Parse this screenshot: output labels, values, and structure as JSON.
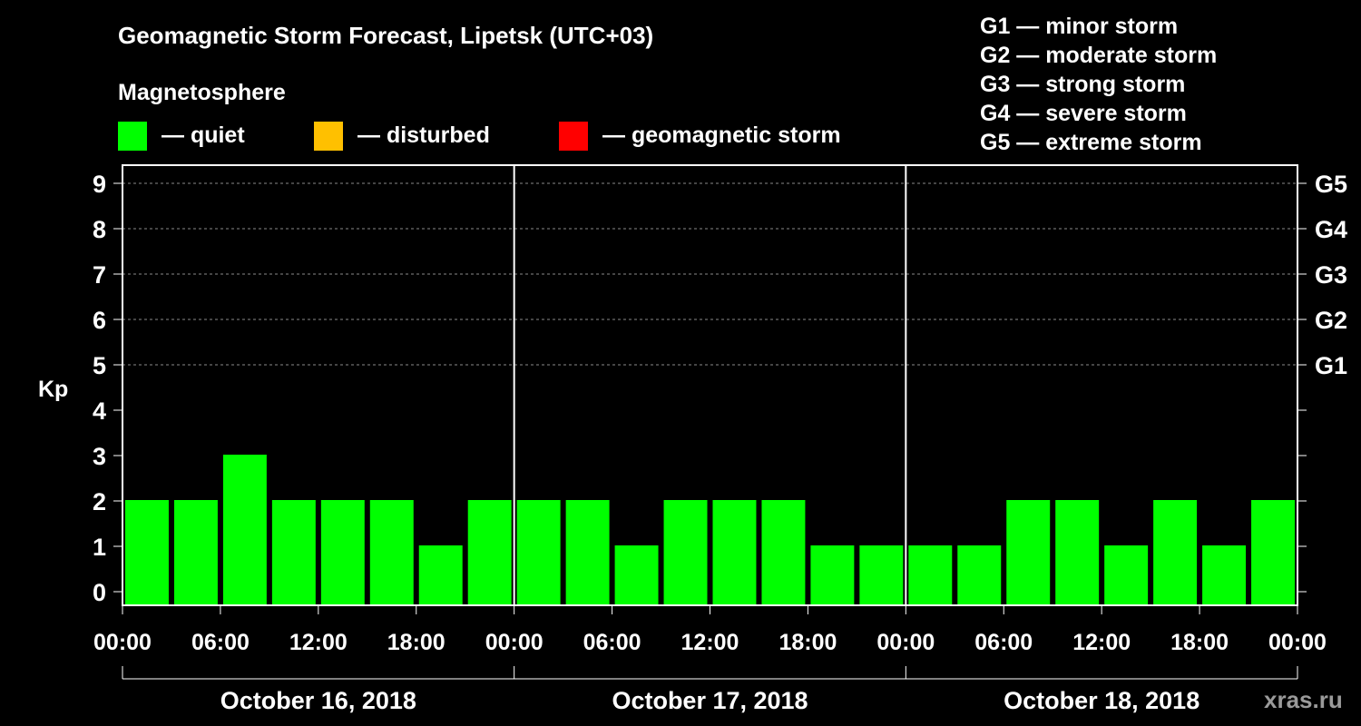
{
  "title": "Geomagnetic Storm Forecast, Lipetsk (UTC+03)",
  "legend": {
    "heading": "Magnetosphere",
    "items": [
      {
        "label": "— quiet",
        "color": "#00ff00"
      },
      {
        "label": "— disturbed",
        "color": "#ffc000"
      },
      {
        "label": "— geomagnetic storm",
        "color": "#ff0000"
      }
    ]
  },
  "storm_scale": [
    "G1 — minor storm",
    "G2 — moderate storm",
    "G3 — strong storm",
    "G4 — severe storm",
    "G5 — extreme storm"
  ],
  "watermark": "xras.ru",
  "chart_data": {
    "type": "bar",
    "title": "Geomagnetic Storm Forecast, Lipetsk (UTC+03)",
    "ylabel": "Kp",
    "xlabel": "",
    "ylim": [
      0,
      9
    ],
    "y_ticks": [
      "0",
      "1",
      "2",
      "3",
      "4",
      "5",
      "6",
      "7",
      "8",
      "9"
    ],
    "g_levels": [
      {
        "kp": 5,
        "label": "G1"
      },
      {
        "kp": 6,
        "label": "G2"
      },
      {
        "kp": 7,
        "label": "G3"
      },
      {
        "kp": 8,
        "label": "G4"
      },
      {
        "kp": 9,
        "label": "G5"
      }
    ],
    "x_tick_labels": [
      "00:00",
      "06:00",
      "12:00",
      "18:00",
      "00:00",
      "06:00",
      "12:00",
      "18:00",
      "00:00",
      "06:00",
      "12:00",
      "18:00",
      "00:00"
    ],
    "days": [
      "October 16, 2018",
      "October 17, 2018",
      "October 18, 2018"
    ],
    "bars_per_day": 8,
    "values": [
      2,
      2,
      3,
      2,
      2,
      2,
      1,
      2,
      2,
      2,
      1,
      2,
      2,
      2,
      1,
      1,
      1,
      1,
      2,
      2,
      1,
      2,
      1,
      2
    ],
    "bar_color": "#00ff00",
    "grid": true
  }
}
